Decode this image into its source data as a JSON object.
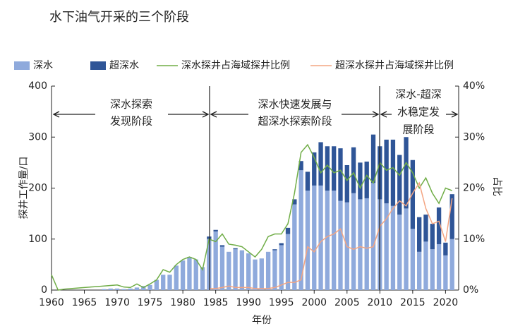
{
  "chart_data": {
    "type": "bar",
    "title": "水下油气开采的三个阶段",
    "x_label": "年份",
    "y_label": "探井工作量/口",
    "y2_label": "占比",
    "annotations": [
      [
        "深水探索",
        "发现阶段"
      ],
      [
        "深水快速发展与",
        "超深水探索阶段"
      ],
      [
        "深水-超深",
        "水稳定发",
        "展阶段"
      ]
    ],
    "x": [
      1960,
      1961,
      1962,
      1963,
      1964,
      1965,
      1966,
      1967,
      1968,
      1969,
      1970,
      1971,
      1972,
      1973,
      1974,
      1975,
      1976,
      1977,
      1978,
      1979,
      1980,
      1981,
      1982,
      1983,
      1984,
      1985,
      1986,
      1987,
      1988,
      1989,
      1990,
      1991,
      1992,
      1993,
      1994,
      1995,
      1996,
      1997,
      1998,
      1999,
      2000,
      2001,
      2002,
      2003,
      2004,
      2005,
      2006,
      2007,
      2008,
      2009,
      2010,
      2011,
      2012,
      2013,
      2014,
      2015,
      2016,
      2017,
      2018,
      2019,
      2020,
      2021
    ],
    "xlim": [
      1960,
      2022
    ],
    "xticks": [
      1960,
      1965,
      1970,
      1975,
      1980,
      1985,
      1990,
      1995,
      2000,
      2005,
      2010,
      2015,
      2020
    ],
    "ylim": [
      0,
      400
    ],
    "yticks": [
      0,
      100,
      200,
      300,
      400
    ],
    "y2lim": [
      0,
      40
    ],
    "y2ticks": [
      {
        "value": 0,
        "label": "0%"
      },
      {
        "value": 10,
        "label": "10%"
      },
      {
        "value": 20,
        "label": "20%"
      },
      {
        "value": 30,
        "label": "30%"
      },
      {
        "value": 40,
        "label": "40%"
      }
    ],
    "series": [
      {
        "name": "深水",
        "type": "bar",
        "color": "#8faadc",
        "values": [
          0,
          0,
          0,
          0,
          0,
          0,
          0,
          0,
          2,
          3,
          3,
          2,
          3,
          5,
          8,
          10,
          20,
          30,
          30,
          48,
          58,
          65,
          60,
          45,
          100,
          115,
          85,
          75,
          80,
          78,
          72,
          60,
          62,
          75,
          78,
          88,
          110,
          168,
          235,
          195,
          205,
          205,
          195,
          195,
          175,
          172,
          190,
          178,
          180,
          210,
          178,
          170,
          165,
          148,
          160,
          120,
          75,
          95,
          80,
          90,
          68,
          100
        ]
      },
      {
        "name": "超深水",
        "type": "bar",
        "color": "#2f5597",
        "values": [
          0,
          0,
          0,
          0,
          0,
          0,
          0,
          0,
          0,
          0,
          0,
          0,
          0,
          0,
          0,
          0,
          0,
          0,
          0,
          0,
          0,
          0,
          0,
          0,
          5,
          3,
          3,
          0,
          2,
          0,
          0,
          0,
          0,
          0,
          2,
          4,
          12,
          10,
          18,
          37,
          65,
          85,
          87,
          87,
          103,
          73,
          90,
          72,
          72,
          95,
          104,
          125,
          130,
          117,
          140,
          135,
          68,
          53,
          50,
          72,
          25,
          88
        ]
      },
      {
        "name": "深水探井占海域探井比例",
        "type": "line",
        "axis": "y2",
        "color": "#70ad47",
        "values": [
          3,
          0,
          0.2,
          0.3,
          0.4,
          0.5,
          0.6,
          0.7,
          0.8,
          0.9,
          1,
          0.6,
          0.5,
          1.2,
          0.5,
          1.2,
          2,
          4,
          3.5,
          5,
          6,
          6.5,
          6,
          4,
          10,
          9.5,
          11,
          9,
          8.8,
          8.5,
          7.5,
          6.5,
          8,
          10.5,
          11,
          11,
          13,
          19,
          27,
          28.5,
          26,
          23,
          24.5,
          23,
          23.5,
          21.5,
          23,
          20,
          22.5,
          21,
          25,
          23.5,
          24,
          22.5,
          25,
          23,
          20,
          22,
          19,
          17,
          20,
          19.5
        ]
      },
      {
        "name": "超深水探井占海域探井比例",
        "type": "line",
        "axis": "y2",
        "color": "#f4a582",
        "values": [
          null,
          null,
          null,
          null,
          null,
          null,
          null,
          null,
          null,
          null,
          null,
          null,
          null,
          null,
          null,
          null,
          null,
          null,
          null,
          null,
          null,
          null,
          null,
          null,
          0.3,
          0.3,
          0.5,
          0.8,
          0.5,
          0.5,
          0.5,
          0.3,
          0.3,
          0.3,
          0.5,
          1,
          1.5,
          1.5,
          2,
          8.5,
          7.5,
          9.5,
          10.5,
          11,
          12,
          8.5,
          8,
          8.5,
          8.2,
          8.5,
          12.5,
          14,
          16,
          17.5,
          16.5,
          19,
          21,
          16,
          13,
          13.5,
          9.5,
          18
        ]
      }
    ]
  }
}
